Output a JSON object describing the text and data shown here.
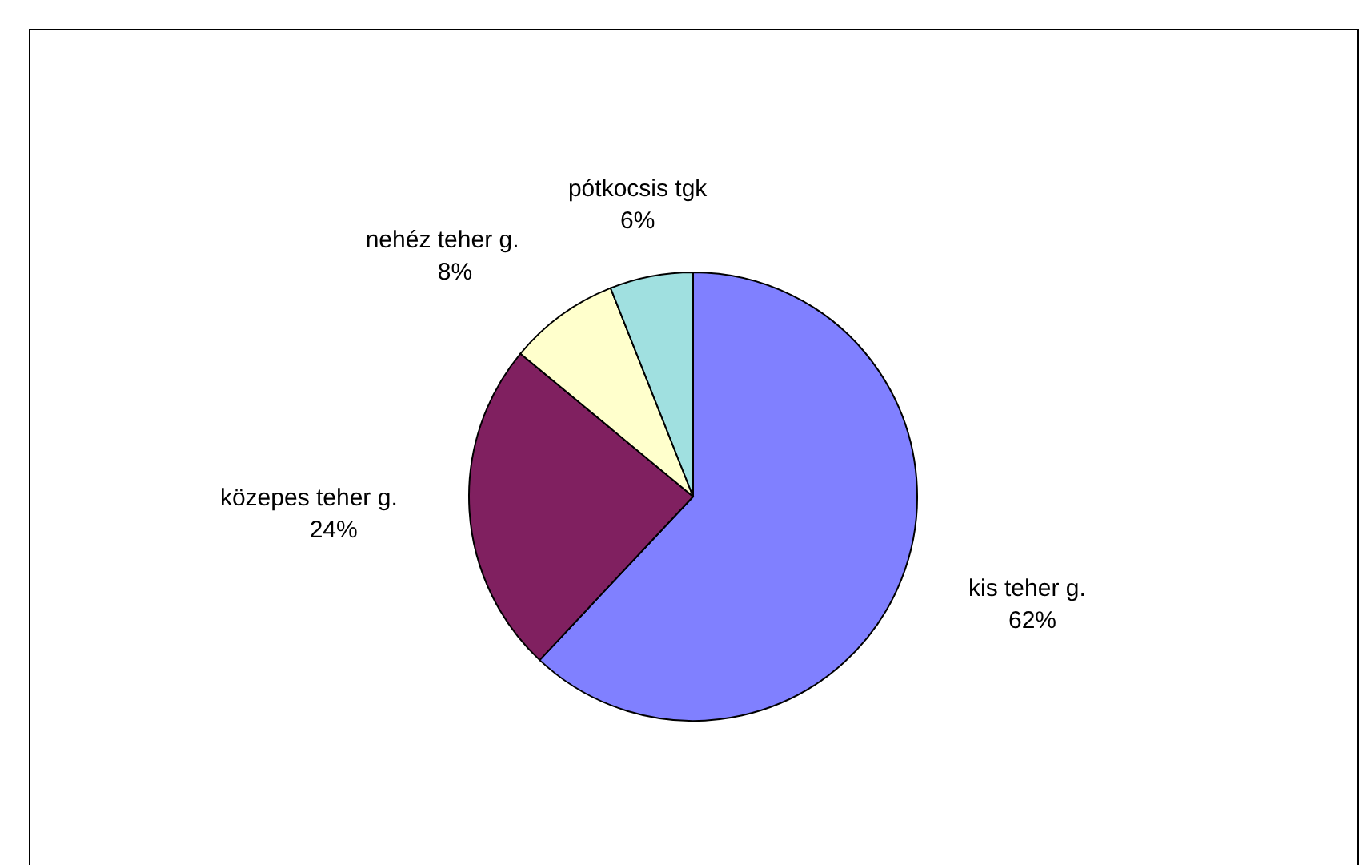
{
  "chart_data": {
    "type": "pie",
    "categories": [
      "kis teher g.",
      "közepes teher g.",
      "nehéz teher g.",
      "pótkocsis tgk"
    ],
    "values": [
      62,
      24,
      8,
      6
    ],
    "colors": [
      "#8080ff",
      "#802060",
      "#ffffcc",
      "#a0e0e0"
    ],
    "value_labels": [
      "62%",
      "24%",
      "8%",
      "6%"
    ]
  }
}
